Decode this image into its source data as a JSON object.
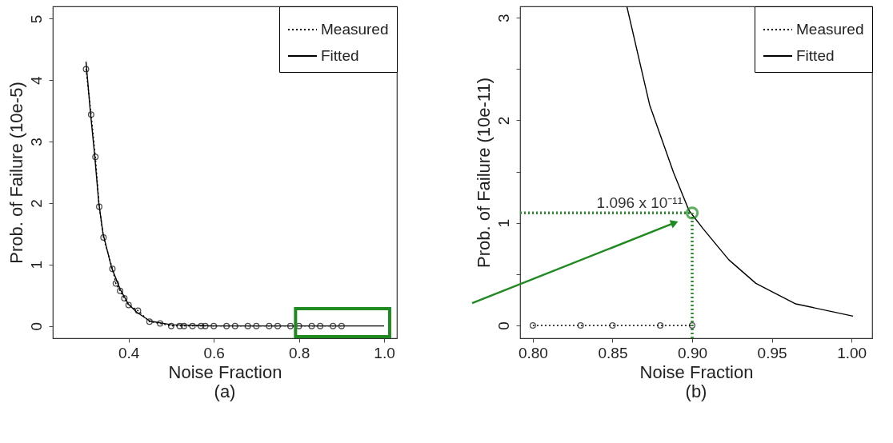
{
  "chart_data": [
    {
      "type": "line",
      "xlabel": "Noise Fraction",
      "ylabel": "Prob. of Failure (10e-5)",
      "annotations": [
        "(a)"
      ],
      "xlim": [
        0.222,
        1.03
      ],
      "ylim": [
        -0.2,
        5.2
      ],
      "xticks": [
        0.4,
        0.6,
        0.8,
        {
          "value": 1.0,
          "label": "1.0"
        }
      ],
      "yticks": [
        0,
        1,
        2,
        3,
        4,
        5
      ],
      "grid": false,
      "legend": "top right",
      "series": [
        {
          "name": "Measured",
          "color": "#000000",
          "line_style": "dotted",
          "marker": "circle",
          "x": [
            0.3,
            0.312,
            0.322,
            0.331,
            0.341,
            0.362,
            0.37,
            0.38,
            0.39,
            0.4,
            0.422,
            0.449,
            0.474,
            0.5,
            0.52,
            0.53,
            0.55,
            0.57,
            0.58,
            0.6,
            0.63,
            0.65,
            0.68,
            0.7,
            0.73,
            0.75,
            0.78,
            0.8,
            0.83,
            0.85,
            0.88,
            0.9
          ],
          "values": [
            4.18,
            3.44,
            2.75,
            1.94,
            1.44,
            0.93,
            0.69,
            0.57,
            0.45,
            0.34,
            0.25,
            0.07,
            0.04,
            0,
            0,
            0,
            0,
            0,
            0,
            0,
            0,
            0,
            0,
            0,
            0,
            0,
            0,
            0,
            0,
            0,
            0,
            0
          ]
        },
        {
          "name": "Fitted",
          "color": "#000000",
          "line_style": "solid",
          "marker": "none",
          "x": [
            0.3,
            0.31,
            0.32,
            0.33,
            0.34,
            0.36,
            0.38,
            0.4,
            0.42,
            0.45,
            0.5,
            0.6,
            0.8,
            1.0
          ],
          "values": [
            4.3,
            3.5,
            2.8,
            2.0,
            1.5,
            0.95,
            0.6,
            0.35,
            0.22,
            0.08,
            0.02,
            0,
            0,
            0
          ]
        }
      ]
    },
    {
      "type": "line",
      "xlabel": "Noise Fraction",
      "ylabel": "Prob. of Failure (10e-11)",
      "annotations": [
        "(b)",
        {
          "text": "1.096 x 10⁻¹¹",
          "x": 0.9,
          "y": 1.096
        }
      ],
      "xlim": [
        0.792,
        1.013
      ],
      "ylim": [
        -0.125,
        3.11
      ],
      "xticks": [
        {
          "value": 0.8,
          "label": "0.80"
        },
        0.85,
        {
          "value": 0.9,
          "label": "0.90"
        },
        0.95,
        {
          "value": 1.0,
          "label": "1.00"
        }
      ],
      "yticks": [
        0,
        {
          "value": 0.5,
          "label": null
        },
        1,
        {
          "value": 1.5,
          "label": null
        },
        2,
        {
          "value": 2.5,
          "label": null
        },
        3
      ],
      "grid": false,
      "legend": "top right",
      "ref_lines": [
        {
          "axis": "y",
          "value": 1.096,
          "color": "#2e8b2e",
          "line_style": "dotted"
        },
        {
          "axis": "x",
          "value": 0.9,
          "color": "#2e8b2e",
          "line_style": "dotted"
        }
      ],
      "series": [
        {
          "name": "Measured",
          "color": "#000000",
          "line_style": "dotted",
          "marker": "circle",
          "x": [
            0.8,
            0.83,
            0.85,
            0.88,
            0.9
          ],
          "values": [
            0,
            0,
            0,
            0,
            0
          ]
        },
        {
          "name": "Fitted",
          "color": "#000000",
          "line_style": "solid",
          "marker": "none",
          "x": [
            0.859,
            0.8733,
            0.8883,
            0.898,
            0.907,
            0.923,
            0.94,
            0.965,
            1.001
          ],
          "values": [
            3.11,
            2.15,
            1.49,
            1.12,
            0.94,
            0.64,
            0.41,
            0.21,
            0.09
          ]
        }
      ]
    }
  ]
}
